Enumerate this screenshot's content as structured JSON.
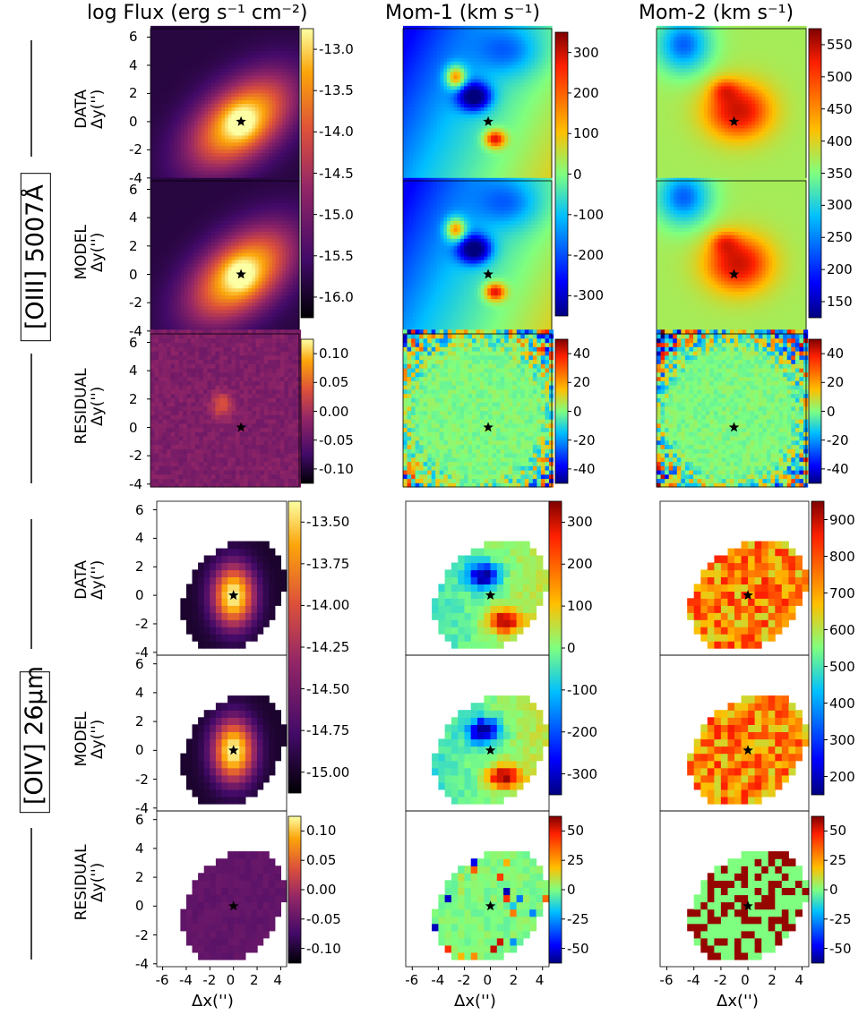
{
  "columns": [
    {
      "title": "log Flux (erg s⁻¹ cm⁻²)"
    },
    {
      "title": "Mom-1 (km s⁻¹)"
    },
    {
      "title": "Mom-2 (km s⁻¹)"
    }
  ],
  "rows": [
    {
      "label_line1": "DATA",
      "label_line2": "Δy('')"
    },
    {
      "label_line1": "MODEL",
      "label_line2": "Δy('')"
    },
    {
      "label_line1": "RESIDUAL",
      "label_line2": "Δy('')"
    }
  ],
  "sections": [
    {
      "label": "[OIII] 5007Å"
    },
    {
      "label": "[OIV] 26μm"
    }
  ],
  "xlabel": "Δx('')",
  "x_ticks": [
    "-6",
    "-4",
    "-2",
    "0",
    "2",
    "4"
  ],
  "y_ticks": [
    "6",
    "4",
    "2",
    "0",
    "-2",
    "-4"
  ],
  "colors": {
    "inferno": [
      "#000004",
      "#420a68",
      "#932667",
      "#dd513a",
      "#fca50a",
      "#fcffa4"
    ],
    "jet": [
      "#00007f",
      "#0000ff",
      "#00bfff",
      "#7fff7f",
      "#ffbf00",
      "#ff2000",
      "#7f0000"
    ]
  },
  "chart_data": [
    {
      "type": "heatmap",
      "section": "[OIII] 5007Å",
      "row": "DATA",
      "quantity": "log Flux",
      "cmap": "inferno",
      "colorbar_ticks": [
        "-13.0",
        "-13.5",
        "-14.0",
        "-14.5",
        "-15.0",
        "-15.5",
        "-16.0"
      ],
      "clim": [
        -16.3,
        -12.8
      ],
      "nucleus": [
        0.2,
        0.0
      ]
    },
    {
      "type": "heatmap",
      "section": "[OIII] 5007Å",
      "row": "MODEL",
      "quantity": "log Flux",
      "cmap": "inferno",
      "nucleus": [
        0.2,
        0.0
      ]
    },
    {
      "type": "heatmap",
      "section": "[OIII] 5007Å",
      "row": "RESIDUAL",
      "quantity": "log Flux",
      "cmap": "inferno",
      "colorbar_ticks": [
        "0.10",
        "0.05",
        "0.00",
        "-0.05",
        "-0.10"
      ],
      "clim": [
        -0.1,
        0.1
      ],
      "nucleus": [
        0.2,
        0.0
      ]
    },
    {
      "type": "heatmap",
      "section": "[OIII] 5007Å",
      "row": "DATA",
      "quantity": "Mom-1",
      "cmap": "jet",
      "colorbar_ticks": [
        "300",
        "200",
        "100",
        "0",
        "-100",
        "-200",
        "-300"
      ],
      "clim": [
        -340,
        330
      ],
      "nucleus": [
        -0.2,
        0.0
      ]
    },
    {
      "type": "heatmap",
      "section": "[OIII] 5007Å",
      "row": "MODEL",
      "quantity": "Mom-1",
      "cmap": "jet",
      "nucleus": [
        -0.2,
        0.0
      ]
    },
    {
      "type": "heatmap",
      "section": "[OIII] 5007Å",
      "row": "RESIDUAL",
      "quantity": "Mom-1",
      "cmap": "jet",
      "colorbar_ticks": [
        "40",
        "20",
        "0",
        "-20",
        "-40"
      ],
      "clim": [
        -40,
        40
      ],
      "nucleus": [
        -0.2,
        0.0
      ]
    },
    {
      "type": "heatmap",
      "section": "[OIII] 5007Å",
      "row": "DATA",
      "quantity": "Mom-2",
      "cmap": "jet",
      "colorbar_ticks": [
        "550",
        "500",
        "450",
        "400",
        "350",
        "300",
        "250",
        "200",
        "150"
      ],
      "clim": [
        150,
        550
      ],
      "nucleus": [
        -0.8,
        0.0
      ]
    },
    {
      "type": "heatmap",
      "section": "[OIII] 5007Å",
      "row": "MODEL",
      "quantity": "Mom-2",
      "cmap": "jet",
      "nucleus": [
        -0.8,
        0.0
      ]
    },
    {
      "type": "heatmap",
      "section": "[OIII] 5007Å",
      "row": "RESIDUAL",
      "quantity": "Mom-2",
      "cmap": "jet",
      "colorbar_ticks": [
        "40",
        "20",
        "0",
        "-20",
        "-40"
      ],
      "clim": [
        -40,
        40
      ],
      "nucleus": [
        -0.8,
        0.0
      ]
    },
    {
      "type": "heatmap",
      "section": "[OIV] 26μm",
      "row": "DATA",
      "quantity": "log Flux",
      "cmap": "inferno",
      "colorbar_ticks": [
        "-13.50",
        "-13.75",
        "-14.00",
        "-14.25",
        "-14.50",
        "-14.75",
        "-15.00"
      ],
      "clim": [
        -15.2,
        -13.35
      ],
      "nucleus": [
        0.0,
        0.0
      ]
    },
    {
      "type": "heatmap",
      "section": "[OIV] 26μm",
      "row": "MODEL",
      "quantity": "log Flux",
      "cmap": "inferno",
      "nucleus": [
        0.0,
        0.0
      ]
    },
    {
      "type": "heatmap",
      "section": "[OIV] 26μm",
      "row": "RESIDUAL",
      "quantity": "log Flux",
      "cmap": "inferno",
      "colorbar_ticks": [
        "0.10",
        "0.05",
        "0.00",
        "-0.05",
        "-0.10"
      ],
      "clim": [
        -0.1,
        0.1
      ],
      "nucleus": [
        0.0,
        0.0
      ]
    },
    {
      "type": "heatmap",
      "section": "[OIV] 26μm",
      "row": "DATA",
      "quantity": "Mom-1",
      "cmap": "jet",
      "colorbar_ticks": [
        "300",
        "200",
        "100",
        "0",
        "-100",
        "-200",
        "-300"
      ],
      "clim": [
        -300,
        300
      ],
      "nucleus": [
        0.0,
        0.0
      ]
    },
    {
      "type": "heatmap",
      "section": "[OIV] 26μm",
      "row": "MODEL",
      "quantity": "Mom-1",
      "cmap": "jet",
      "nucleus": [
        0.0,
        0.0
      ]
    },
    {
      "type": "heatmap",
      "section": "[OIV] 26μm",
      "row": "RESIDUAL",
      "quantity": "Mom-1",
      "cmap": "jet",
      "colorbar_ticks": [
        "50",
        "25",
        "0",
        "-25",
        "-50"
      ],
      "clim": [
        -50,
        50
      ],
      "nucleus": [
        0.0,
        0.0
      ]
    },
    {
      "type": "heatmap",
      "section": "[OIV] 26μm",
      "row": "DATA",
      "quantity": "Mom-2",
      "cmap": "jet",
      "colorbar_ticks": [
        "900",
        "800",
        "700",
        "600",
        "500",
        "400",
        "300",
        "200"
      ],
      "clim": [
        200,
        950
      ],
      "nucleus": [
        0.0,
        0.0
      ]
    },
    {
      "type": "heatmap",
      "section": "[OIV] 26μm",
      "row": "MODEL",
      "quantity": "Mom-2",
      "cmap": "jet",
      "nucleus": [
        0.0,
        0.0
      ]
    },
    {
      "type": "heatmap",
      "section": "[OIV] 26μm",
      "row": "RESIDUAL",
      "quantity": "Mom-2",
      "cmap": "jet",
      "colorbar_ticks": [
        "50",
        "25",
        "0",
        "-25",
        "-50"
      ],
      "clim": [
        -50,
        50
      ],
      "nucleus": [
        0.0,
        0.0
      ]
    }
  ]
}
